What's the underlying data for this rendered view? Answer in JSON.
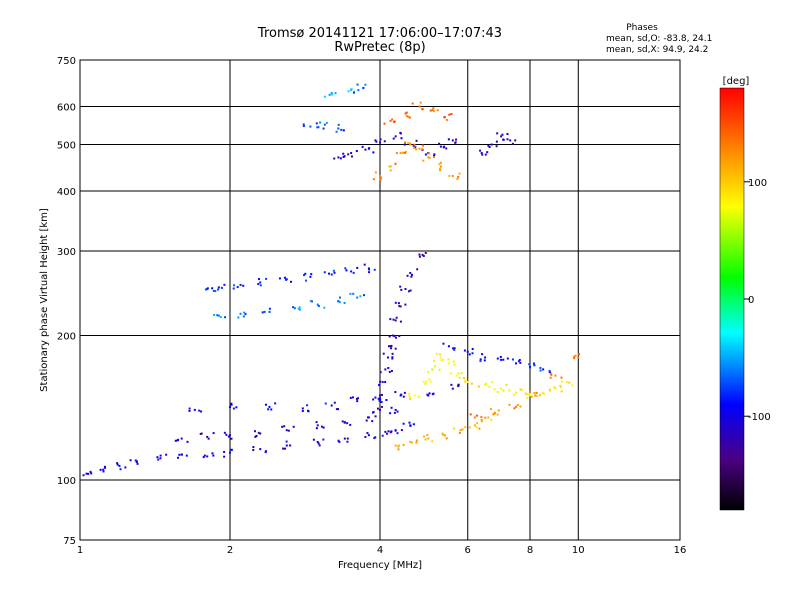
{
  "header": {
    "title_line1": "Tromsø 20141121 17:06:00–17:07:43",
    "title_line2": "RwPretec (8p)"
  },
  "phases": {
    "title": "Phases",
    "o_line": "mean, sd,O: -83.8, 24.1",
    "x_line": "mean, sd,X:  94.9, 24.2"
  },
  "colorbar": {
    "unit": "[deg]",
    "ticks": [
      {
        "value": 100,
        "label": "100"
      },
      {
        "value": 0,
        "label": "0"
      },
      {
        "value": -100,
        "label": "-100"
      }
    ],
    "range": [
      -180,
      180
    ]
  },
  "chart_data": {
    "type": "scatter",
    "title": "Tromsø 20141121 17:06:00–17:07:43",
    "subtitle": "RwPretec (8p)",
    "xlabel": "Frequency [MHz]",
    "ylabel": "Stationary phase Virtual Height [km]",
    "xscale": "log",
    "yscale": "log",
    "xlim": [
      1,
      16
    ],
    "ylim": [
      75,
      750
    ],
    "grid": true,
    "x_ticks": [
      1,
      2,
      4,
      6,
      8,
      10,
      16
    ],
    "y_ticks": [
      75,
      100,
      200,
      300,
      400,
      500,
      600,
      750
    ],
    "color_scale": "phase (deg), rainbow, -180 to 180",
    "traces": [
      {
        "f": [
          1.05,
          1.1,
          1.2,
          1.3,
          1.45,
          1.6,
          1.8,
          2.0,
          2.3,
          2.6,
          3.0,
          3.4,
          3.8,
          4.1,
          4.3,
          4.6
        ],
        "h": [
          104,
          105,
          107,
          109,
          111,
          113,
          112,
          114,
          116,
          118,
          120,
          122,
          124,
          126,
          127,
          130
        ],
        "phase": -100
      },
      {
        "f": [
          1.6,
          1.8,
          2.0,
          2.3,
          2.6,
          3.0,
          3.4,
          3.8,
          4.3,
          5.0,
          5.6
        ],
        "h": [
          122,
          123,
          124,
          125,
          127,
          130,
          132,
          135,
          140,
          150,
          155
        ],
        "phase": -110
      },
      {
        "f": [
          1.7,
          2.0,
          2.4,
          2.8,
          3.2,
          3.6,
          4.0,
          4.4
        ],
        "h": [
          140,
          142,
          142,
          141,
          143,
          146,
          148,
          150
        ],
        "phase": -95
      },
      {
        "f": [
          4.0,
          4.0,
          4.05,
          4.1,
          4.15,
          4.2,
          4.25,
          4.3,
          4.4,
          4.5,
          4.6,
          4.8
        ],
        "h": [
          140,
          150,
          160,
          170,
          180,
          190,
          200,
          215,
          230,
          250,
          270,
          295
        ],
        "phase": -115
      },
      {
        "f": [
          4.3,
          4.6,
          5.0,
          5.4,
          5.8,
          6.2,
          6.6
        ],
        "h": [
          118,
          120,
          122,
          124,
          127,
          130,
          135
        ],
        "phase": 110
      },
      {
        "f": [
          4.7,
          4.9,
          5.1,
          5.3,
          5.5,
          5.7
        ],
        "h": [
          150,
          160,
          170,
          180,
          175,
          165
        ],
        "phase": 75
      },
      {
        "f": [
          1.8,
          1.9,
          2.1,
          2.3,
          2.6,
          2.9,
          3.2,
          3.5,
          3.8
        ],
        "h": [
          250,
          252,
          255,
          258,
          262,
          265,
          268,
          272,
          276
        ],
        "phase": -85
      },
      {
        "f": [
          1.9,
          2.1,
          2.4,
          2.7,
          3.0,
          3.3,
          3.6
        ],
        "h": [
          220,
          222,
          224,
          228,
          232,
          236,
          240
        ],
        "phase": -60
      },
      {
        "f": [
          3.3,
          3.5,
          3.8,
          4.0,
          4.3,
          4.6,
          5.0,
          5.3,
          5.6
        ],
        "h": [
          470,
          480,
          490,
          505,
          520,
          500,
          480,
          495,
          510
        ],
        "phase": -105
      },
      {
        "f": [
          2.9,
          3.1,
          3.3
        ],
        "h": [
          545,
          550,
          540
        ],
        "phase": -70
      },
      {
        "f": [
          3.2,
          3.5,
          3.7
        ],
        "h": [
          640,
          650,
          655
        ],
        "phase": -55
      },
      {
        "f": [
          4.0,
          4.2,
          4.4,
          4.6,
          4.8,
          5.0,
          5.3,
          5.6
        ],
        "h": [
          430,
          450,
          480,
          500,
          490,
          470,
          450,
          430
        ],
        "phase": 120
      },
      {
        "f": [
          4.2,
          4.5,
          4.8,
          5.1,
          5.4
        ],
        "h": [
          560,
          580,
          600,
          590,
          570
        ],
        "phase": 140
      },
      {
        "f": [
          6.4,
          6.7,
          7.0,
          7.3
        ],
        "h": [
          480,
          500,
          520,
          510
        ],
        "phase": -110
      },
      {
        "f": [
          6.0,
          6.5,
          7.0,
          7.5,
          8.0,
          8.5,
          9.0,
          9.5
        ],
        "h": [
          160,
          158,
          155,
          152,
          150,
          152,
          155,
          160
        ],
        "phase": 80
      },
      {
        "f": [
          6.2,
          6.8,
          7.5,
          8.2,
          9.0,
          10.0
        ],
        "h": [
          135,
          138,
          142,
          150,
          165,
          180
        ],
        "phase": 130
      },
      {
        "f": [
          5.5,
          6.0,
          6.5,
          7.0,
          7.5,
          8.0,
          8.5
        ],
        "h": [
          190,
          185,
          180,
          178,
          175,
          172,
          170
        ],
        "phase": -90
      }
    ]
  }
}
